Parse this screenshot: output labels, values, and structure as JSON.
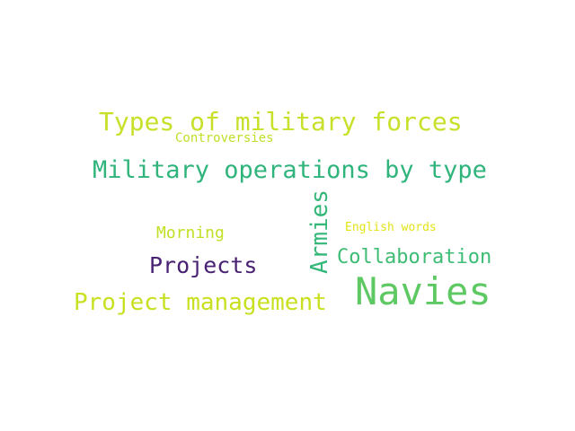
{
  "words": [
    {
      "id": "types-of-military-forces",
      "text": "Types of military forces",
      "color": "#c8e02a"
    },
    {
      "id": "controversies",
      "text": "Controversies",
      "color": "#bddf26"
    },
    {
      "id": "military-operations-by-type",
      "text": "Military operations by type",
      "color": "#2fb47c"
    },
    {
      "id": "morning",
      "text": "Morning",
      "color": "#c2df23"
    },
    {
      "id": "projects",
      "text": "Projects",
      "color": "#482173"
    },
    {
      "id": "project-management",
      "text": "Project management",
      "color": "#c8e020"
    },
    {
      "id": "english-words",
      "text": "English words",
      "color": "#e2e418"
    },
    {
      "id": "collaboration",
      "text": "Collaboration",
      "color": "#3dbc74"
    },
    {
      "id": "navies",
      "text": "Navies",
      "color": "#5ec962"
    },
    {
      "id": "armies",
      "text": "Armies",
      "color": "#35b779"
    }
  ]
}
